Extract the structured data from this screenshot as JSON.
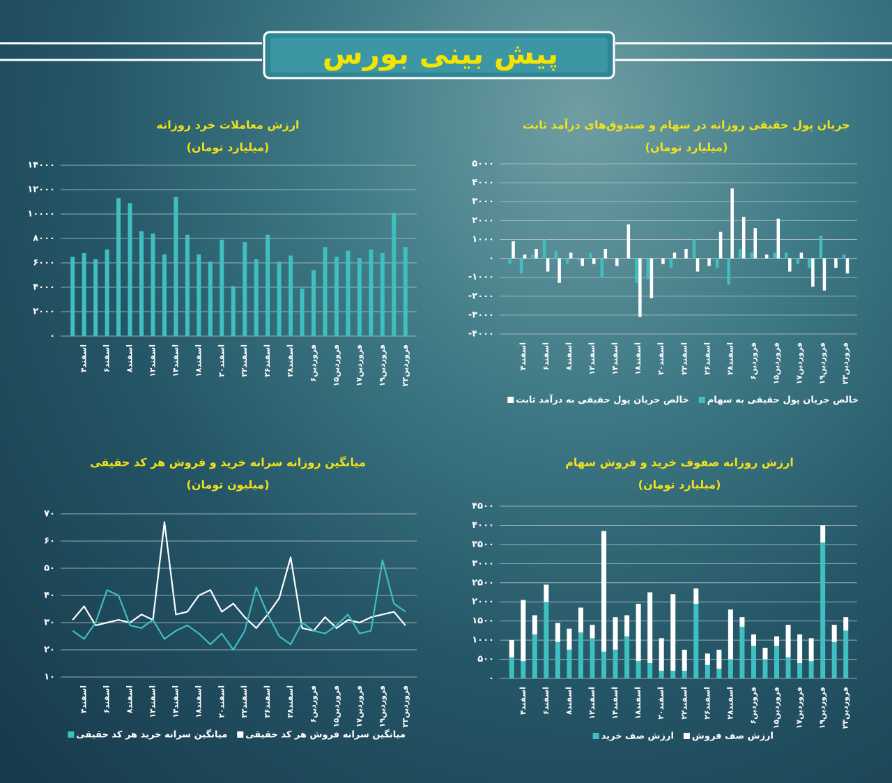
{
  "title": "پیش بینی بورس",
  "chart_data": [
    {
      "type": "bar",
      "title": "ارزش معاملات خرد روزانه",
      "subtitle": "(میلیارد تومان)",
      "categories": [
        null,
        "۴اسفند",
        null,
        "۶اسفند",
        null,
        "۸اسفند",
        null,
        "۱۲اسفند",
        null,
        "۱۴اسفند",
        null,
        "۱۸اسفند",
        null,
        "۲۰اسفند",
        null,
        "۲۲اسفند",
        null,
        "۲۶اسفند",
        null,
        "۲۸اسفند",
        null,
        "۶فروردین",
        null,
        "۱۵فروردین",
        null,
        "۱۷فروردین",
        null,
        "۱۹فروردین",
        null,
        "۲۳فروردین"
      ],
      "values": [
        6500,
        6800,
        6300,
        7100,
        11300,
        10900,
        8600,
        8400,
        6700,
        11400,
        8300,
        6700,
        6100,
        7900,
        4100,
        7700,
        6300,
        8300,
        6100,
        6600,
        3900,
        5400,
        7300,
        6500,
        7000,
        6400,
        7100,
        6800,
        10100,
        7300
      ],
      "color": "#3fbfbf",
      "ylim": [
        0,
        14000
      ],
      "yticks": [
        {
          "value": 0,
          "label": "۰"
        },
        {
          "value": 2000,
          "label": "۲۰۰۰"
        },
        {
          "value": 4000,
          "label": "۴۰۰۰"
        },
        {
          "value": 6000,
          "label": "۶۰۰۰"
        },
        {
          "value": 8000,
          "label": "۸۰۰۰"
        },
        {
          "value": 10000,
          "label": "۱۰۰۰۰"
        },
        {
          "value": 12000,
          "label": "۱۲۰۰۰"
        },
        {
          "value": 14000,
          "label": "۱۴۰۰۰"
        }
      ],
      "grid": true
    },
    {
      "type": "bar",
      "title": "جریان پول حقیقی روزانه در سهام و صندوق‌های درآمد ثابت",
      "subtitle": "(میلیارد تومان)",
      "categories": [
        null,
        "۴اسفند",
        null,
        "۶اسفند",
        null,
        "۸اسفند",
        null,
        "۱۲اسفند",
        null,
        "۱۴اسفند",
        null,
        "۱۸اسفند",
        null,
        "۲۰اسفند",
        null,
        "۲۲اسفند",
        null,
        "۲۶اسفند",
        null,
        "۲۸اسفند",
        null,
        "۶فروردین",
        null,
        "۱۵فروردین",
        null,
        "۱۷فروردین",
        null,
        "۱۹فروردین",
        null,
        "۲۳فروردین"
      ],
      "series": [
        {
          "name": "خالص جریان پول حقیقی به سهام",
          "color": "#3fbfbf",
          "values": [
            -300,
            -800,
            200,
            1000,
            400,
            -300,
            -100,
            300,
            -1000,
            0,
            0,
            -1300,
            -1100,
            0,
            -500,
            0,
            1000,
            0,
            -500,
            -1400,
            500,
            300,
            0,
            300,
            300,
            -300,
            -500,
            1200,
            0,
            200
          ]
        },
        {
          "name": "خالص جریان پول حقیقی به درآمد ثابت",
          "color": "#ffffff",
          "values": [
            900,
            200,
            500,
            -700,
            -1300,
            300,
            -400,
            -300,
            500,
            -400,
            1800,
            -3100,
            -2100,
            -300,
            300,
            500,
            -700,
            -400,
            1400,
            3700,
            2200,
            1600,
            200,
            2100,
            -700,
            300,
            -1500,
            -1700,
            -500,
            -800
          ]
        }
      ],
      "ylim": [
        -4000,
        5000
      ],
      "yticks": [
        {
          "value": -4000,
          "label": "-۴۰۰۰"
        },
        {
          "value": -3000,
          "label": "-۳۰۰۰"
        },
        {
          "value": -2000,
          "label": "-۲۰۰۰"
        },
        {
          "value": -1000,
          "label": "-۱۰۰۰"
        },
        {
          "value": 0,
          "label": "۰"
        },
        {
          "value": 1000,
          "label": "۱۰۰۰"
        },
        {
          "value": 2000,
          "label": "۲۰۰۰"
        },
        {
          "value": 3000,
          "label": "۳۰۰۰"
        },
        {
          "value": 4000,
          "label": "۴۰۰۰"
        },
        {
          "value": 5000,
          "label": "۵۰۰۰"
        }
      ],
      "grid": true
    },
    {
      "type": "line",
      "title": "میانگین روزانه سرانه خرید و فروش هر کد حقیقی",
      "subtitle": "(میلیون تومان)",
      "categories": [
        null,
        "۴اسفند",
        null,
        "۶اسفند",
        null,
        "۸اسفند",
        null,
        "۱۲اسفند",
        null,
        "۱۴اسفند",
        null,
        "۱۸اسفند",
        null,
        "۲۰اسفند",
        null,
        "۲۲اسفند",
        null,
        "۲۶اسفند",
        null,
        "۲۸اسفند",
        null,
        "۶فروردین",
        null,
        "۱۵فروردین",
        null,
        "۱۷فروردین",
        null,
        "۱۹فروردین",
        null,
        "۲۳فروردین"
      ],
      "series": [
        {
          "name": "میانگین سرانه فروش هر کد حقیقی",
          "color": "#ffffff",
          "values": [
            31,
            36,
            29,
            30,
            31,
            30,
            33,
            31,
            67,
            33,
            34,
            40,
            42,
            34,
            37,
            32,
            28,
            33,
            39,
            54,
            28,
            27,
            32,
            28,
            31,
            30,
            32,
            33,
            34,
            29
          ]
        },
        {
          "name": "میانگین سرانه خرید هر کد حقیقی",
          "color": "#3fbfbf",
          "values": [
            27,
            24,
            30,
            42,
            40,
            29,
            28,
            31,
            24,
            27,
            29,
            26,
            22,
            26,
            20,
            27,
            43,
            33,
            25,
            22,
            30,
            27,
            26,
            29,
            33,
            26,
            27,
            53,
            37,
            34
          ]
        }
      ],
      "ylim": [
        10,
        70
      ],
      "yticks": [
        {
          "value": 10,
          "label": "۱۰"
        },
        {
          "value": 20,
          "label": "۲۰"
        },
        {
          "value": 30,
          "label": "۳۰"
        },
        {
          "value": 40,
          "label": "۴۰"
        },
        {
          "value": 50,
          "label": "۵۰"
        },
        {
          "value": 60,
          "label": "۶۰"
        },
        {
          "value": 70,
          "label": "۷۰"
        }
      ],
      "grid": true
    },
    {
      "type": "bar",
      "stacked": true,
      "title": "ارزش روزانه صفوف خرید و فروش سهام",
      "subtitle": "(میلیارد تومان)",
      "categories": [
        null,
        "۴اسفند",
        null,
        "۶اسفند",
        null,
        "۸اسفند",
        null,
        "۱۲اسفند",
        null,
        "۱۴اسفند",
        null,
        "۱۸اسفند",
        null,
        "۲۰اسفند",
        null,
        "۲۲اسفند",
        null,
        "۲۶اسفند",
        null,
        "۲۸اسفند",
        null,
        "۶فروردین",
        null,
        "۱۵فروردین",
        null,
        "۱۷فروردین",
        null,
        "۱۹فروردین",
        null,
        "۲۳فروردین"
      ],
      "series": [
        {
          "name": "ارزش صف فروش",
          "color": "#ffffff",
          "values": [
            450,
            1600,
            500,
            450,
            500,
            550,
            650,
            350,
            3150,
            850,
            550,
            1500,
            1850,
            850,
            2000,
            550,
            400,
            300,
            500,
            1300,
            250,
            300,
            300,
            250,
            850,
            750,
            600,
            450,
            450,
            350
          ]
        },
        {
          "name": "ارزش صف خرید",
          "color": "#3fbfbf",
          "values": [
            550,
            450,
            1150,
            2000,
            950,
            750,
            1200,
            1050,
            700,
            750,
            1100,
            450,
            400,
            200,
            200,
            200,
            1950,
            350,
            250,
            500,
            1350,
            850,
            500,
            850,
            550,
            400,
            450,
            3550,
            950,
            1250
          ]
        }
      ],
      "ylim": [
        0,
        4500
      ],
      "yticks": [
        {
          "value": 0,
          "label": "۰"
        },
        {
          "value": 500,
          "label": "۵۰۰"
        },
        {
          "value": 1000,
          "label": "۱۰۰۰"
        },
        {
          "value": 1500,
          "label": "۱۵۰۰"
        },
        {
          "value": 2000,
          "label": "۲۰۰۰"
        },
        {
          "value": 2500,
          "label": "۲۵۰۰"
        },
        {
          "value": 3000,
          "label": "۳۰۰۰"
        },
        {
          "value": 3500,
          "label": "۳۵۰۰"
        },
        {
          "value": 4000,
          "label": "۴۰۰۰"
        },
        {
          "value": 4500,
          "label": "۴۵۰۰"
        }
      ],
      "grid": true
    }
  ]
}
